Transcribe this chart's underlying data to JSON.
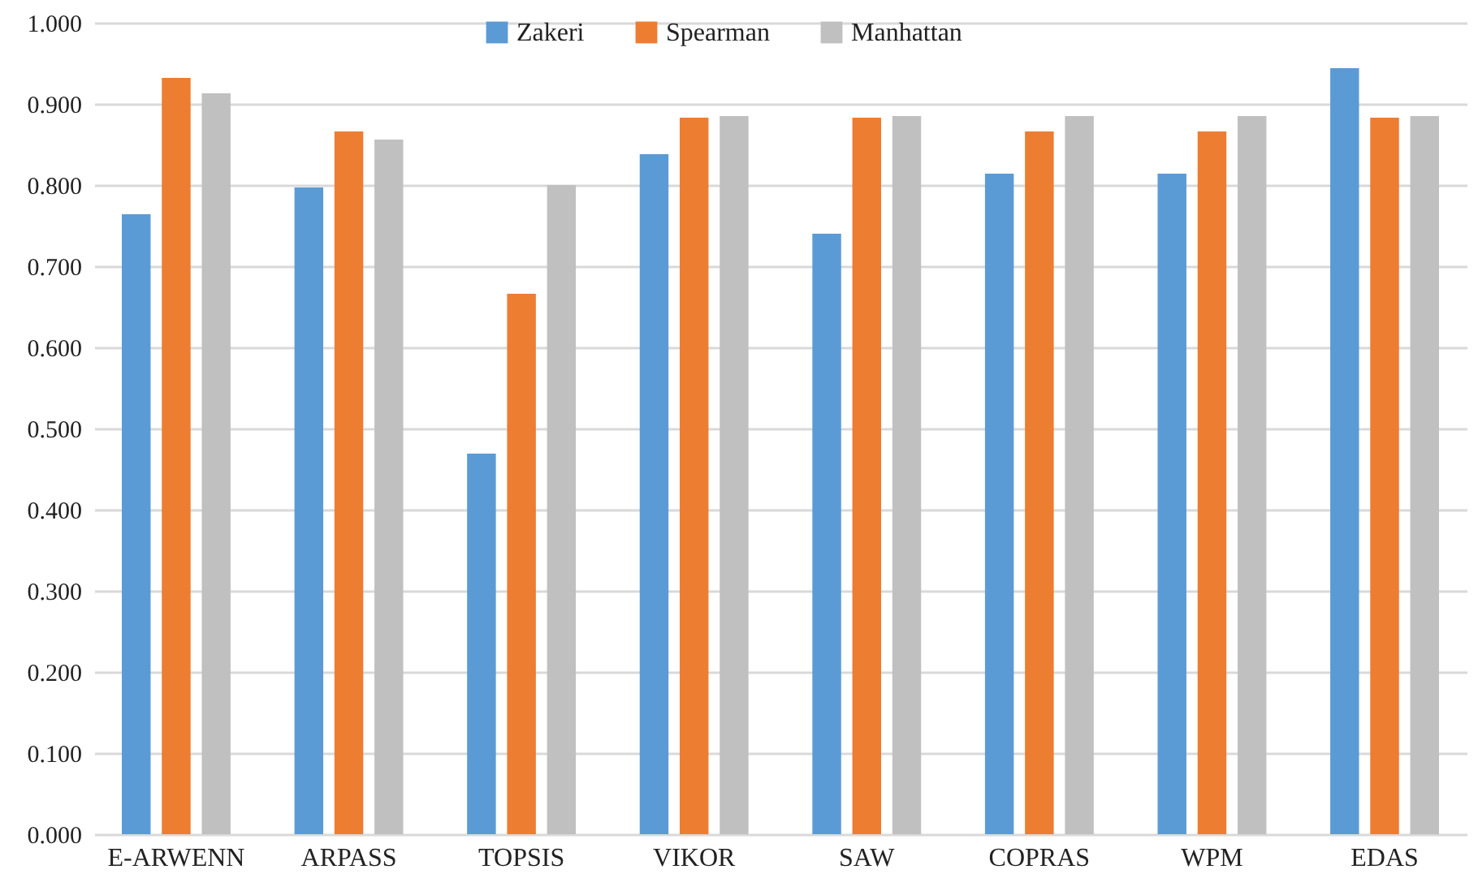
{
  "chart_data": {
    "type": "bar",
    "categories": [
      "E-ARWENN",
      "ARPASS",
      "TOPSIS",
      "VIKOR",
      "SAW",
      "COPRAS",
      "WPM",
      "EDAS"
    ],
    "series": [
      {
        "name": "Zakeri",
        "color": "#5b9bd5",
        "values": [
          0.764,
          0.797,
          0.469,
          0.838,
          0.74,
          0.814,
          0.814,
          0.944
        ]
      },
      {
        "name": "Spearman",
        "color": "#ed7d31",
        "values": [
          0.932,
          0.866,
          0.666,
          0.883,
          0.883,
          0.866,
          0.866,
          0.883
        ]
      },
      {
        "name": "Manhattan",
        "color": "#bfc0bf",
        "values": [
          0.913,
          0.856,
          0.8,
          0.885,
          0.885,
          0.885,
          0.885,
          0.885
        ]
      }
    ],
    "ylim": [
      0,
      1
    ],
    "yticks": [
      {
        "value": 0,
        "label": "0.000"
      },
      {
        "value": 0.1,
        "label": "0.100"
      },
      {
        "value": 0.2,
        "label": "0.200"
      },
      {
        "value": 0.3,
        "label": "0.300"
      },
      {
        "value": 0.4,
        "label": "0.400"
      },
      {
        "value": 0.5,
        "label": "0.500"
      },
      {
        "value": 0.6,
        "label": "0.600"
      },
      {
        "value": 0.7,
        "label": "0.700"
      },
      {
        "value": 0.8,
        "label": "0.800"
      },
      {
        "value": 0.9,
        "label": "0.900"
      },
      {
        "value": 1,
        "label": "1.000"
      }
    ],
    "grid": "y",
    "legend": "top"
  }
}
